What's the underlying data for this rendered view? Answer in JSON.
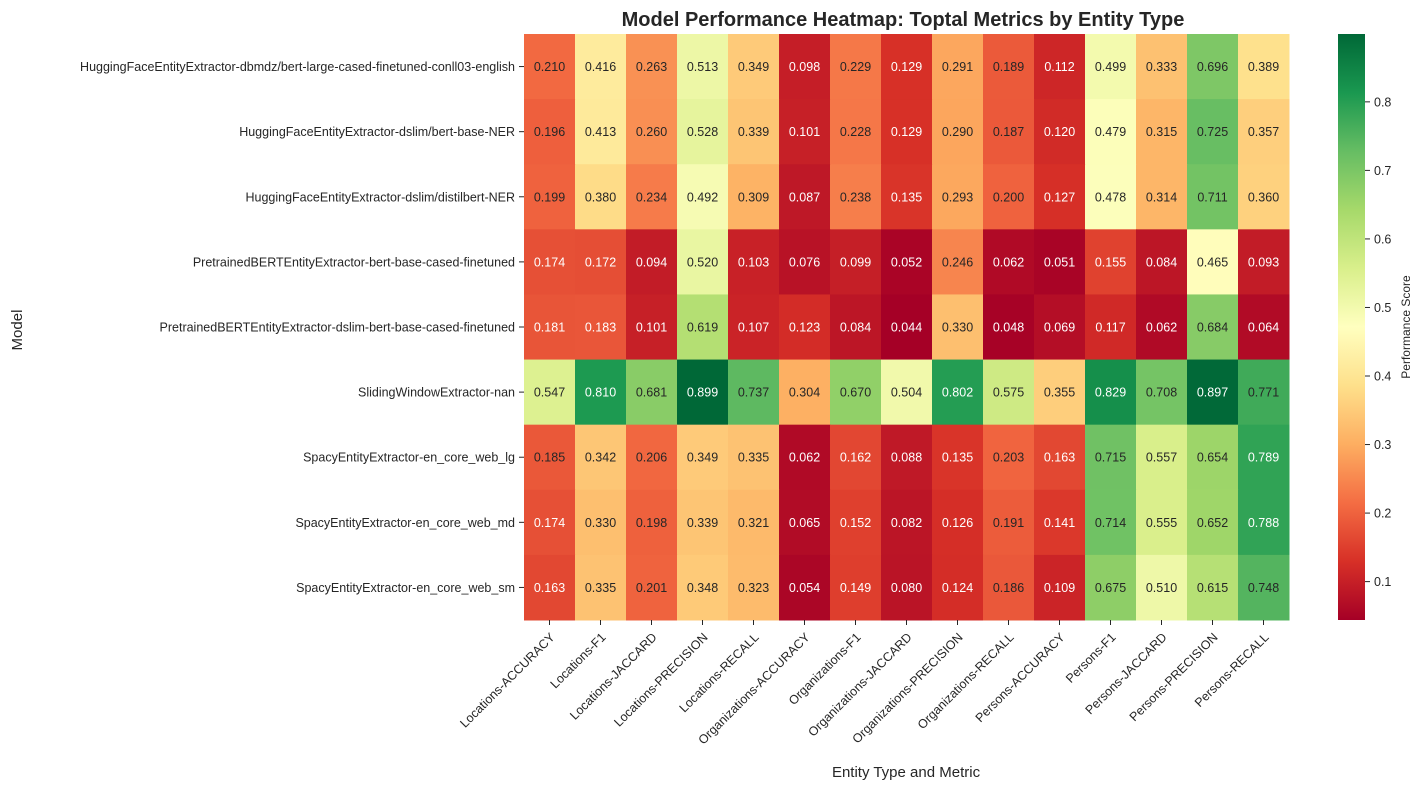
{
  "chart_data": {
    "type": "heatmap",
    "title": "Model Performance Heatmap: Toptal Metrics by Entity Type",
    "xlabel": "Entity Type and Metric",
    "ylabel": "Model",
    "colorbar_label": "Performance Score",
    "colormap": "RdYlGn",
    "value_range": [
      0.044,
      0.899
    ],
    "colorbar_ticks": [
      0.1,
      0.2,
      0.3,
      0.4,
      0.5,
      0.6,
      0.7,
      0.8
    ],
    "colorbar_tick_labels": [
      "0.1",
      "0.2",
      "0.3",
      "0.4",
      "0.5",
      "0.6",
      "0.7",
      "0.8"
    ],
    "columns": [
      "Locations-ACCURACY",
      "Locations-F1",
      "Locations-JACCARD",
      "Locations-PRECISION",
      "Locations-RECALL",
      "Organizations-ACCURACY",
      "Organizations-F1",
      "Organizations-JACCARD",
      "Organizations-PRECISION",
      "Organizations-RECALL",
      "Persons-ACCURACY",
      "Persons-F1",
      "Persons-JACCARD",
      "Persons-PRECISION",
      "Persons-RECALL"
    ],
    "rows": [
      "HuggingFaceEntityExtractor-dbmdz/bert-large-cased-finetuned-conll03-english",
      "HuggingFaceEntityExtractor-dslim/bert-base-NER",
      "HuggingFaceEntityExtractor-dslim/distilbert-NER",
      "PretrainedBERTEntityExtractor-bert-base-cased-finetuned",
      "PretrainedBERTEntityExtractor-dslim-bert-base-cased-finetuned",
      "SlidingWindowExtractor-nan",
      "SpacyEntityExtractor-en_core_web_lg",
      "SpacyEntityExtractor-en_core_web_md",
      "SpacyEntityExtractor-en_core_web_sm"
    ],
    "values": [
      [
        0.21,
        0.416,
        0.263,
        0.513,
        0.349,
        0.098,
        0.229,
        0.129,
        0.291,
        0.189,
        0.112,
        0.499,
        0.333,
        0.696,
        0.389
      ],
      [
        0.196,
        0.413,
        0.26,
        0.528,
        0.339,
        0.101,
        0.228,
        0.129,
        0.29,
        0.187,
        0.12,
        0.479,
        0.315,
        0.725,
        0.357
      ],
      [
        0.199,
        0.38,
        0.234,
        0.492,
        0.309,
        0.087,
        0.238,
        0.135,
        0.293,
        0.2,
        0.127,
        0.478,
        0.314,
        0.711,
        0.36
      ],
      [
        0.174,
        0.172,
        0.094,
        0.52,
        0.103,
        0.076,
        0.099,
        0.052,
        0.246,
        0.062,
        0.051,
        0.155,
        0.084,
        0.465,
        0.093
      ],
      [
        0.181,
        0.183,
        0.101,
        0.619,
        0.107,
        0.123,
        0.084,
        0.044,
        0.33,
        0.048,
        0.069,
        0.117,
        0.062,
        0.684,
        0.064
      ],
      [
        0.547,
        0.81,
        0.681,
        0.899,
        0.737,
        0.304,
        0.67,
        0.504,
        0.802,
        0.575,
        0.355,
        0.829,
        0.708,
        0.897,
        0.771
      ],
      [
        0.185,
        0.342,
        0.206,
        0.349,
        0.335,
        0.062,
        0.162,
        0.088,
        0.135,
        0.203,
        0.163,
        0.715,
        0.557,
        0.654,
        0.789
      ],
      [
        0.174,
        0.33,
        0.198,
        0.339,
        0.321,
        0.065,
        0.152,
        0.082,
        0.126,
        0.191,
        0.141,
        0.714,
        0.555,
        0.652,
        0.788
      ],
      [
        0.163,
        0.335,
        0.201,
        0.348,
        0.323,
        0.054,
        0.149,
        0.08,
        0.124,
        0.186,
        0.109,
        0.675,
        0.51,
        0.615,
        0.748
      ]
    ]
  }
}
